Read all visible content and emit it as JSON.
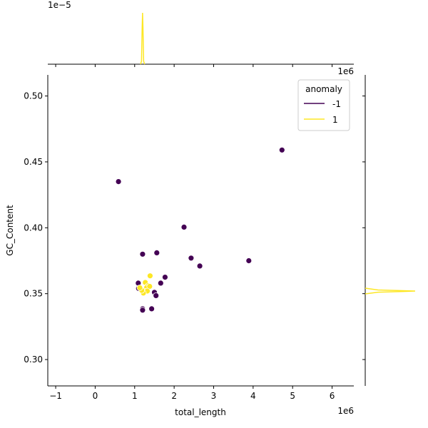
{
  "chart_data": {
    "type": "scatter",
    "xlabel": "total_length",
    "ylabel": "GC_Content",
    "x_offset_text": "1e6",
    "y_offset_text_top": "1e6",
    "marginal_x_offset_text": "1e−5",
    "xlim": [
      -1.2,
      6.55
    ],
    "ylim": [
      0.28,
      0.516
    ],
    "x_ticks": [
      -1,
      0,
      1,
      2,
      3,
      4,
      5,
      6
    ],
    "x_tick_labels": [
      "−1",
      "0",
      "1",
      "2",
      "3",
      "4",
      "5",
      "6"
    ],
    "y_ticks": [
      0.3,
      0.35,
      0.4,
      0.45,
      0.5
    ],
    "y_tick_labels": [
      "0.30",
      "0.35",
      "0.40",
      "0.45",
      "0.50"
    ],
    "legend": {
      "title": "anomaly",
      "placement": "top-right",
      "entries": [
        {
          "label": "-1",
          "color": "#440154"
        },
        {
          "label": "1",
          "color": "#fde725"
        }
      ]
    },
    "grid": false,
    "series": [
      {
        "name": "-1",
        "color": "#440154",
        "points": [
          {
            "x": 0.59,
            "y": 0.435
          },
          {
            "x": 4.73,
            "y": 0.459
          },
          {
            "x": 2.25,
            "y": 0.4005
          },
          {
            "x": 1.2,
            "y": 0.38
          },
          {
            "x": 1.56,
            "y": 0.381
          },
          {
            "x": 2.43,
            "y": 0.377
          },
          {
            "x": 2.65,
            "y": 0.371
          },
          {
            "x": 3.89,
            "y": 0.375
          },
          {
            "x": 1.77,
            "y": 0.3625
          },
          {
            "x": 1.09,
            "y": 0.358
          },
          {
            "x": 1.1,
            "y": 0.354
          },
          {
            "x": 1.66,
            "y": 0.358
          },
          {
            "x": 1.5,
            "y": 0.351
          },
          {
            "x": 1.54,
            "y": 0.3485
          },
          {
            "x": 1.2,
            "y": 0.3385
          },
          {
            "x": 1.2,
            "y": 0.3375
          },
          {
            "x": 1.43,
            "y": 0.3385
          }
        ]
      },
      {
        "name": "1",
        "color": "#fde725",
        "points": [
          {
            "x": 1.39,
            "y": 0.3635
          },
          {
            "x": 1.27,
            "y": 0.3585
          },
          {
            "x": 1.34,
            "y": 0.356
          },
          {
            "x": 1.3,
            "y": 0.3545
          },
          {
            "x": 1.38,
            "y": 0.3555
          },
          {
            "x": 1.24,
            "y": 0.352
          },
          {
            "x": 1.32,
            "y": 0.352
          },
          {
            "x": 1.22,
            "y": 0.3505
          },
          {
            "x": 1.18,
            "y": 0.3525
          },
          {
            "x": 1.13,
            "y": 0.3545
          }
        ]
      }
    ],
    "marginal_x": {
      "color": "#fde725",
      "peak_x": 1.2
    },
    "marginal_y": {
      "color": "#fde725",
      "peak_y": 0.352
    }
  }
}
